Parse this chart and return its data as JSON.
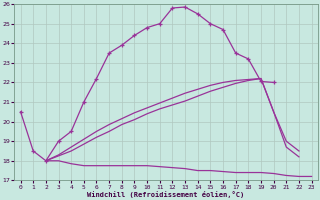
{
  "xlabel": "Windchill (Refroidissement éolien,°C)",
  "bg_color": "#c8e8e0",
  "grid_color": "#b0c8c0",
  "line_color": "#993399",
  "xlim": [
    -0.5,
    23.5
  ],
  "ylim": [
    17,
    26
  ],
  "x_ticks": [
    0,
    1,
    2,
    3,
    4,
    5,
    6,
    7,
    8,
    9,
    10,
    11,
    12,
    13,
    14,
    15,
    16,
    17,
    18,
    19,
    20,
    21,
    22,
    23
  ],
  "y_ticks": [
    17,
    18,
    19,
    20,
    21,
    22,
    23,
    24,
    25,
    26
  ],
  "line1": {
    "x": [
      0,
      1,
      2,
      3,
      4,
      5,
      6,
      7,
      8,
      9,
      10,
      11,
      12,
      13,
      14,
      15,
      16,
      17,
      18,
      19,
      20
    ],
    "y": [
      20.5,
      18.5,
      18.0,
      19.0,
      19.5,
      21.0,
      22.2,
      23.5,
      23.9,
      24.4,
      24.8,
      25.0,
      25.8,
      25.85,
      25.5,
      25.0,
      24.7,
      23.5,
      23.2,
      22.05,
      22.0
    ],
    "marker": true
  },
  "line2": {
    "x": [
      2,
      3,
      4,
      5,
      6,
      7,
      8,
      9,
      10,
      11,
      12,
      13,
      14,
      15,
      16,
      17,
      18,
      19,
      20,
      21,
      22,
      23
    ],
    "y": [
      18.0,
      18.0,
      17.85,
      17.75,
      17.75,
      17.75,
      17.75,
      17.75,
      17.75,
      17.7,
      17.65,
      17.6,
      17.5,
      17.5,
      17.45,
      17.4,
      17.4,
      17.4,
      17.35,
      17.25,
      17.2,
      17.2
    ],
    "marker": false
  },
  "line3": {
    "x": [
      2,
      3,
      4,
      5,
      6,
      7,
      8,
      9,
      10,
      11,
      12,
      13,
      14,
      15,
      16,
      17,
      18,
      19,
      20,
      21,
      22
    ],
    "y": [
      18.0,
      18.25,
      18.5,
      18.85,
      19.2,
      19.5,
      19.85,
      20.1,
      20.4,
      20.65,
      20.85,
      21.05,
      21.3,
      21.55,
      21.75,
      21.95,
      22.1,
      22.2,
      20.5,
      19.0,
      18.5
    ],
    "marker": false
  },
  "line4": {
    "x": [
      2,
      3,
      4,
      5,
      6,
      7,
      8,
      9,
      10,
      11,
      12,
      13,
      14,
      15,
      16,
      17,
      18,
      19,
      20,
      21,
      22
    ],
    "y": [
      18.0,
      18.3,
      18.7,
      19.1,
      19.5,
      19.85,
      20.15,
      20.45,
      20.7,
      20.95,
      21.2,
      21.45,
      21.65,
      21.85,
      22.0,
      22.1,
      22.15,
      22.2,
      20.5,
      18.7,
      18.2
    ],
    "marker": false
  }
}
